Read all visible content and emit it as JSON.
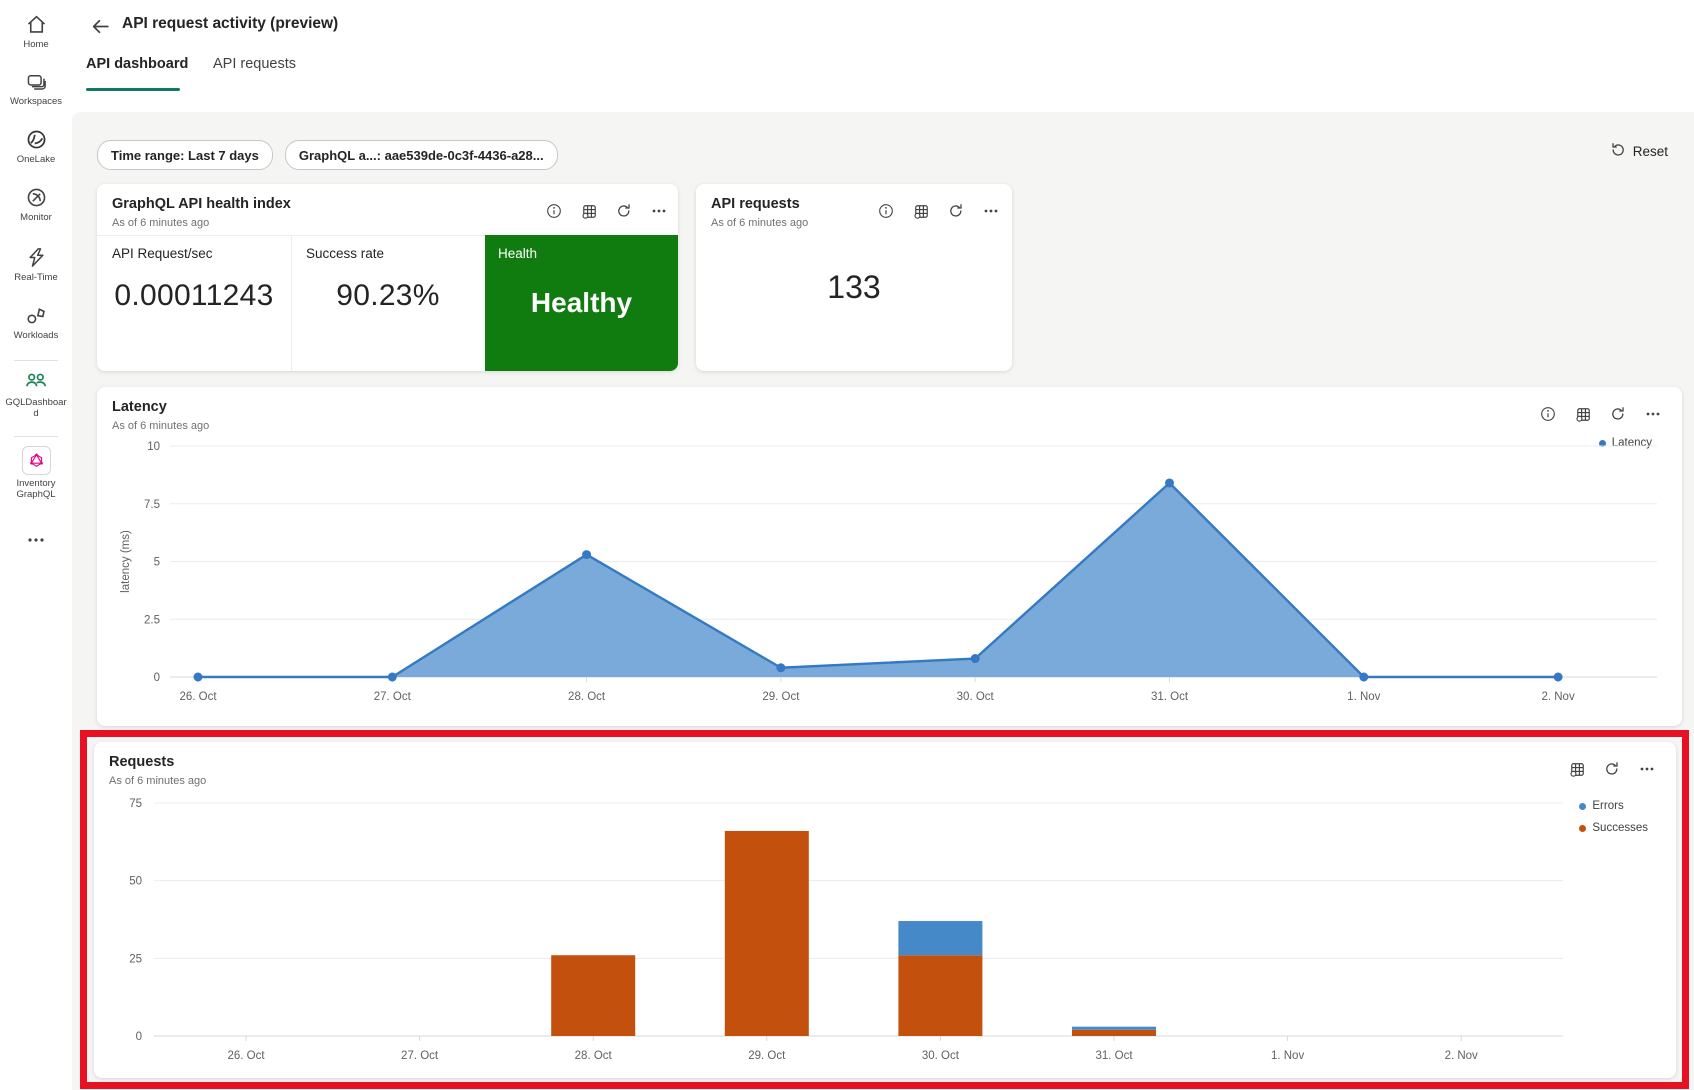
{
  "sidebar": {
    "items": [
      {
        "label": "Home"
      },
      {
        "label": "Workspaces"
      },
      {
        "label": "OneLake"
      },
      {
        "label": "Monitor"
      },
      {
        "label": "Real-Time"
      },
      {
        "label": "Workloads"
      },
      {
        "label": "GQLDashboard"
      },
      {
        "label": "Inventory GraphQL"
      }
    ]
  },
  "header": {
    "title": "API request activity (preview)",
    "tabs": [
      {
        "label": "API dashboard",
        "active": true
      },
      {
        "label": "API requests",
        "active": false
      }
    ],
    "accent_color": "#117865"
  },
  "filters": {
    "pills": [
      {
        "label": "Time range: Last 7 days"
      },
      {
        "label": "GraphQL a...: aae539de-0c3f-4436-a28..."
      }
    ],
    "reset_label": "Reset"
  },
  "cards": {
    "health": {
      "title": "GraphQL API health index",
      "subtitle": "As of 6 minutes ago",
      "metrics": [
        {
          "label": "API Request/sec",
          "value": "0.00011243"
        },
        {
          "label": "Success rate",
          "value": "90.23%"
        }
      ],
      "health_label": "Health",
      "health_value": "Healthy",
      "health_color": "#107C10"
    },
    "api_requests": {
      "title": "API requests",
      "subtitle": "As of 6 minutes ago",
      "value": "133"
    },
    "latency": {
      "title": "Latency",
      "subtitle": "As of 6 minutes ago"
    },
    "requests": {
      "title": "Requests",
      "subtitle": "As of 6 minutes ago"
    }
  },
  "annotation": {
    "type": "highlight-box",
    "target": "requests-card",
    "color": "#e81123"
  },
  "chart_data": [
    {
      "type": "area",
      "title": "Latency",
      "x": [
        "26. Oct",
        "27. Oct",
        "28. Oct",
        "29. Oct",
        "30. Oct",
        "31. Oct",
        "1. Nov",
        "2. Nov"
      ],
      "series": [
        {
          "name": "Latency",
          "values": [
            0,
            0,
            5.3,
            0.4,
            0.8,
            8.4,
            0,
            0
          ],
          "color": "#3579c4",
          "fill": "#6ea3d6"
        }
      ],
      "xlabel": "",
      "ylabel": "latency (ms)",
      "ylim": [
        0,
        10
      ],
      "yticks": [
        0,
        2.5,
        5,
        7.5,
        10
      ],
      "grid": true,
      "legend_position": "right"
    },
    {
      "type": "bar",
      "stacked": true,
      "title": "Requests",
      "categories": [
        "26. Oct",
        "27. Oct",
        "28. Oct",
        "29. Oct",
        "30. Oct",
        "31. Oct",
        "1. Nov",
        "2. Nov"
      ],
      "series": [
        {
          "name": "Errors",
          "values": [
            0,
            0,
            0,
            0,
            11,
            1,
            0,
            0
          ],
          "color": "#4589c8"
        },
        {
          "name": "Successes",
          "values": [
            0,
            0,
            26,
            66,
            26,
            2,
            0,
            0
          ],
          "color": "#c4500e"
        }
      ],
      "xlabel": "",
      "ylabel": "",
      "ylim": [
        0,
        75
      ],
      "yticks": [
        0,
        25,
        50,
        75
      ],
      "grid": true,
      "legend_position": "right"
    }
  ]
}
